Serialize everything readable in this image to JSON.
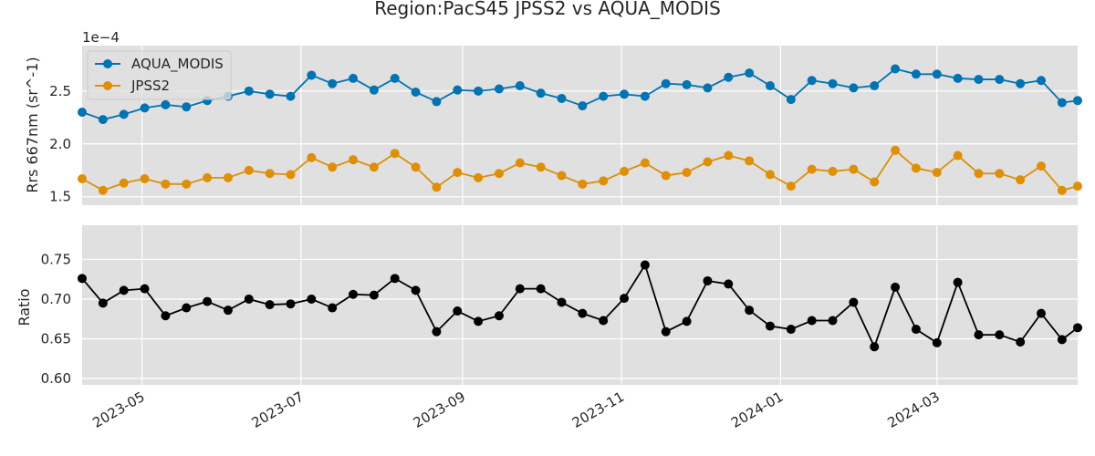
{
  "chart_data": {
    "type": "line",
    "title": "Region:PacS45 JPSS2 vs AQUA_MODIS",
    "x_tick_labels": [
      "2023-05",
      "2023-07",
      "2023-09",
      "2023-11",
      "2024-01",
      "2024-03"
    ],
    "x_ticks": [
      "2023-05-01",
      "2023-07-01",
      "2023-09-01",
      "2023-11-01",
      "2024-01-01",
      "2024-03-01"
    ],
    "xlim": [
      "2023-04-08",
      "2024-04-24"
    ],
    "dates": [
      "2023-04-08",
      "2023-04-16",
      "2023-04-24",
      "2023-05-02",
      "2023-05-10",
      "2023-05-18",
      "2023-05-26",
      "2023-06-03",
      "2023-06-11",
      "2023-06-19",
      "2023-06-27",
      "2023-07-05",
      "2023-07-13",
      "2023-07-21",
      "2023-07-29",
      "2023-08-06",
      "2023-08-14",
      "2023-08-22",
      "2023-08-30",
      "2023-09-07",
      "2023-09-15",
      "2023-09-23",
      "2023-10-01",
      "2023-10-09",
      "2023-10-17",
      "2023-10-25",
      "2023-11-02",
      "2023-11-10",
      "2023-11-18",
      "2023-11-26",
      "2023-12-04",
      "2023-12-12",
      "2023-12-20",
      "2023-12-28",
      "2024-01-05",
      "2024-01-13",
      "2024-01-21",
      "2024-01-29",
      "2024-02-06",
      "2024-02-14",
      "2024-02-22",
      "2024-03-01",
      "2024-03-09",
      "2024-03-17",
      "2024-03-25",
      "2024-04-02",
      "2024-04-10",
      "2024-04-18",
      "2024-04-24"
    ],
    "panels": [
      {
        "ylabel": "Rrs 667nm (sr^-1)",
        "offset_label": "1e−4",
        "ylim": [
          1.42,
          2.93
        ],
        "y_ticks": [
          1.5,
          2.0,
          2.5
        ],
        "y_tick_labels": [
          "1.5",
          "2.0",
          "2.5"
        ],
        "grid": true,
        "legend": "top-left",
        "series": [
          {
            "name": "AQUA_MODIS",
            "color": "#0173b2",
            "values": [
              2.3,
              2.23,
              2.28,
              2.34,
              2.37,
              2.35,
              2.41,
              2.45,
              2.5,
              2.47,
              2.45,
              2.65,
              2.57,
              2.62,
              2.51,
              2.62,
              2.49,
              2.4,
              2.51,
              2.5,
              2.52,
              2.55,
              2.48,
              2.43,
              2.36,
              2.45,
              2.47,
              2.45,
              2.57,
              2.56,
              2.53,
              2.63,
              2.67,
              2.55,
              2.42,
              2.6,
              2.57,
              2.53,
              2.55,
              2.71,
              2.66,
              2.66,
              2.62,
              2.61,
              2.61,
              2.57,
              2.6,
              2.39,
              2.41
            ]
          },
          {
            "name": "JPSS2",
            "color": "#de8f05",
            "values": [
              1.67,
              1.56,
              1.63,
              1.67,
              1.62,
              1.62,
              1.68,
              1.68,
              1.75,
              1.72,
              1.71,
              1.87,
              1.78,
              1.85,
              1.78,
              1.91,
              1.78,
              1.59,
              1.73,
              1.68,
              1.72,
              1.82,
              1.78,
              1.7,
              1.62,
              1.65,
              1.74,
              1.82,
              1.7,
              1.73,
              1.83,
              1.89,
              1.84,
              1.71,
              1.6,
              1.76,
              1.74,
              1.76,
              1.64,
              1.94,
              1.77,
              1.73,
              1.89,
              1.72,
              1.72,
              1.66,
              1.79,
              1.56,
              1.6
            ]
          }
        ]
      },
      {
        "ylabel": "Ratio",
        "ylim": [
          0.592,
          0.793
        ],
        "y_ticks": [
          0.6,
          0.65,
          0.7,
          0.75
        ],
        "y_tick_labels": [
          "0.60",
          "0.65",
          "0.70",
          "0.75"
        ],
        "grid": true,
        "series": [
          {
            "color": "#000000",
            "values": [
              0.726,
              0.695,
              0.711,
              0.713,
              0.679,
              0.689,
              0.697,
              0.686,
              0.7,
              0.693,
              0.694,
              0.7,
              0.689,
              0.706,
              0.705,
              0.726,
              0.711,
              0.659,
              0.685,
              0.672,
              0.679,
              0.713,
              0.713,
              0.696,
              0.682,
              0.673,
              0.701,
              0.743,
              0.659,
              0.672,
              0.723,
              0.719,
              0.686,
              0.666,
              0.662,
              0.673,
              0.673,
              0.696,
              0.64,
              0.715,
              0.662,
              0.645,
              0.721,
              0.655,
              0.655,
              0.646,
              0.682,
              0.649,
              0.664
            ]
          }
        ]
      }
    ]
  }
}
